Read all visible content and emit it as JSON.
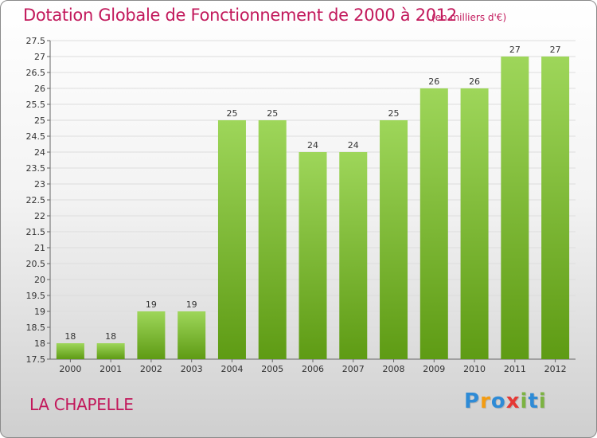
{
  "title": "Dotation Globale de Fonctionnement de 2000 à 2012",
  "unit_note": "(en milliers d'€)",
  "commune": "LA CHAPELLE",
  "logo": {
    "text": "Proxiti",
    "letters": [
      {
        "ch": "P",
        "color": "#2e8bd6"
      },
      {
        "ch": "r",
        "color": "#f39c12"
      },
      {
        "ch": "o",
        "color": "#2e8bd6"
      },
      {
        "ch": "x",
        "color": "#e53935"
      },
      {
        "ch": "i",
        "color": "#7cb342"
      },
      {
        "ch": "t",
        "color": "#2e8bd6"
      },
      {
        "ch": "i",
        "color": "#7cb342"
      }
    ]
  },
  "colors": {
    "bar_top": "#9ed65a",
    "bar_bottom": "#5e9b14",
    "text_accent": "#c2185b",
    "grid": "#dddddd"
  },
  "chart_data": {
    "type": "bar",
    "title": "Dotation Globale de Fonctionnement de 2000 à 2012",
    "categories": [
      "2000",
      "2001",
      "2002",
      "2003",
      "2004",
      "2005",
      "2006",
      "2007",
      "2008",
      "2009",
      "2010",
      "2011",
      "2012"
    ],
    "values": [
      18,
      18,
      19,
      19,
      25,
      25,
      24,
      24,
      25,
      26,
      26,
      27,
      27
    ],
    "ylim": [
      17.5,
      27.5
    ],
    "yticks": [
      "17.5",
      "18",
      "18.5",
      "19",
      "19.5",
      "20",
      "20.5",
      "21",
      "21.5",
      "22",
      "22.5",
      "23",
      "23.5",
      "24",
      "24.5",
      "25",
      "25.5",
      "26",
      "26.5",
      "27",
      "27.5"
    ],
    "xlabel": "",
    "ylabel": "",
    "grid": true,
    "legend": "none"
  }
}
